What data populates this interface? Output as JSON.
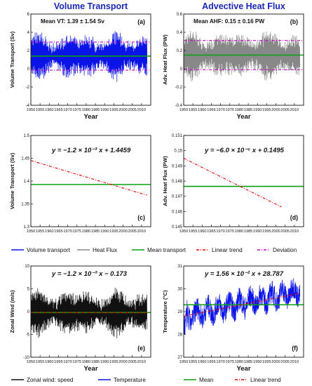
{
  "chart_data": [
    {
      "id": "a",
      "type": "line",
      "title": "Volume Transport",
      "ylabel": "Volume Transport (Sv)",
      "xlabel": "Year",
      "annotation": "Mean VT: 1.39 ± 1.54 Sv",
      "panel_label": "(a)",
      "xlim": [
        1950,
        2015
      ],
      "ylim": [
        -4,
        6
      ],
      "yticks": [
        -4,
        -2,
        0,
        2,
        4,
        6
      ],
      "xticks": [
        1950,
        1955,
        1960,
        1965,
        1970,
        1975,
        1980,
        1985,
        1990,
        1995,
        2000,
        2005,
        2010
      ],
      "series": [
        {
          "color": "#0a14e6",
          "kind": "oscillation",
          "x_range": [
            1950,
            2013
          ],
          "mean": 1.39,
          "amplitude": 2.1,
          "noise": 0.6
        },
        {
          "color": "#0aa014",
          "kind": "hline",
          "value": 1.39
        },
        {
          "color": "#cc00cc",
          "kind": "hline",
          "value": 2.93,
          "dash": true
        },
        {
          "color": "#cc00cc",
          "kind": "hline",
          "value": -0.15,
          "dash": true
        }
      ]
    },
    {
      "id": "b",
      "type": "line",
      "title": "Advective Heat Flux",
      "ylabel": "Adv. Heat Flux (PW)",
      "xlabel": "Year",
      "annotation": "Mean AHF: 0.15 ± 0.16 PW",
      "panel_label": "(b)",
      "xlim": [
        1950,
        2015
      ],
      "ylim": [
        -0.4,
        0.6
      ],
      "yticks": [
        -0.4,
        -0.2,
        0,
        0.2,
        0.4,
        0.6
      ],
      "xticks": [
        1950,
        1955,
        1960,
        1965,
        1970,
        1975,
        1980,
        1985,
        1990,
        1995,
        2000,
        2005,
        2010
      ],
      "series": [
        {
          "color": "#888888",
          "kind": "oscillation",
          "x_range": [
            1950,
            2013
          ],
          "mean": 0.15,
          "amplitude": 0.22,
          "noise": 0.06
        },
        {
          "color": "#0aa014",
          "kind": "hline",
          "value": 0.15
        },
        {
          "color": "#cc00cc",
          "kind": "hline",
          "value": 0.31,
          "dash": true
        },
        {
          "color": "#cc00cc",
          "kind": "hline",
          "value": -0.01,
          "dash": true
        }
      ]
    },
    {
      "id": "c",
      "type": "line",
      "ylabel": "Volume Transport (Sv)",
      "panel_label": "(c)",
      "equation": "y = −1.2 × 10⁻³ x + 1.4459",
      "xlim": [
        1950,
        2015
      ],
      "ylim": [
        1.3,
        1.5
      ],
      "yticks": [
        1.3,
        1.35,
        1.4,
        1.45,
        1.5
      ],
      "xticks": [
        1950,
        1955,
        1960,
        1965,
        1970,
        1975,
        1980,
        1985,
        1990,
        1995,
        2000,
        2005,
        2010
      ],
      "series": [
        {
          "color": "#0aa014",
          "kind": "hline",
          "value": 1.3925
        },
        {
          "color": "#e60000",
          "kind": "segment",
          "dash": true,
          "x": [
            1950,
            2013
          ],
          "y": [
            1.445,
            1.369
          ]
        }
      ]
    },
    {
      "id": "d",
      "type": "line",
      "ylabel": "Adv. Heat Flux (PW)",
      "panel_label": "(d)",
      "equation": "y = −6.0 × 10⁻⁵ x + 0.1495",
      "xlim": [
        1950,
        2015
      ],
      "ylim": [
        0.145,
        0.151
      ],
      "yticks": [
        0.145,
        0.146,
        0.147,
        0.148,
        0.149,
        0.15,
        0.151
      ],
      "xticks": [
        1950,
        1955,
        1960,
        1965,
        1970,
        1975,
        1980,
        1985,
        1990,
        1995,
        2000,
        2005,
        2010
      ],
      "series": [
        {
          "color": "#0aa014",
          "kind": "hline",
          "value": 0.14765
        },
        {
          "color": "#e60000",
          "kind": "segment",
          "dash": true,
          "x": [
            1950,
            2003
          ],
          "y": [
            0.1495,
            0.1463
          ]
        }
      ]
    },
    {
      "id": "e",
      "type": "line",
      "ylabel": "Zonal Wind (m/s)",
      "xlabel": "Year",
      "panel_label": "(e)",
      "equation": "y = −1.2 × 10⁻³ x − 0.173",
      "xlim": [
        1950,
        2015
      ],
      "ylim": [
        -10,
        10
      ],
      "yticks": [
        -10,
        -5,
        0,
        5,
        10
      ],
      "xticks": [
        1950,
        1955,
        1960,
        1965,
        1970,
        1975,
        1980,
        1985,
        1990,
        1995,
        2000,
        2005,
        2010
      ],
      "series": [
        {
          "color": "#111111",
          "kind": "oscillation",
          "x_range": [
            1950,
            2013
          ],
          "mean": -0.2,
          "amplitude": 4.2,
          "noise": 1.2
        },
        {
          "color": "#0aa014",
          "kind": "hline",
          "value": -0.2
        },
        {
          "color": "#e60000",
          "kind": "segment",
          "dash": true,
          "x": [
            1950,
            2013
          ],
          "y": [
            -0.17,
            -0.25
          ]
        }
      ]
    },
    {
      "id": "f",
      "type": "line",
      "ylabel": "Temperature (°C)",
      "xlabel": "Year",
      "panel_label": "(f)",
      "equation": "y = 1.56 × 10⁻² x + 28.787",
      "xlim": [
        1950,
        2015
      ],
      "ylim": [
        27,
        31
      ],
      "yticks": [
        27,
        28,
        29,
        30,
        31
      ],
      "xticks": [
        1950,
        1955,
        1960,
        1965,
        1970,
        1975,
        1980,
        1985,
        1990,
        1995,
        2000,
        2005,
        2010
      ],
      "series": [
        {
          "color": "#0a14e6",
          "kind": "noise_trend",
          "x_range": [
            1950,
            2013
          ],
          "start": 28.8,
          "end": 29.9,
          "noise": 0.5
        },
        {
          "color": "#0aa014",
          "kind": "hline",
          "value": 29.3
        },
        {
          "color": "#e60000",
          "kind": "segment",
          "dash": true,
          "x": [
            1950,
            2013
          ],
          "y": [
            28.8,
            29.8
          ]
        }
      ]
    }
  ],
  "legends": {
    "row1": [
      {
        "label": "Volume transport",
        "color": "#0a14e6",
        "dash": false
      },
      {
        "label": "Heat Flux",
        "color": "#888888",
        "dash": false
      },
      {
        "label": "Mean transport",
        "color": "#0aa014",
        "dash": false
      },
      {
        "label": "Linear trend",
        "color": "#e60000",
        "dash": true
      },
      {
        "label": "Deviation",
        "color": "#cc00cc",
        "dash": true
      }
    ],
    "row2": [
      {
        "label": "Zonal wind: speed",
        "color": "#111111",
        "dash": false
      },
      {
        "label": "Temperature",
        "color": "#0a14e6",
        "dash": false
      },
      {
        "label": "Mean",
        "color": "#0aa014",
        "dash": false
      },
      {
        "label": "Linear trend",
        "color": "#e60000",
        "dash": true
      }
    ]
  }
}
